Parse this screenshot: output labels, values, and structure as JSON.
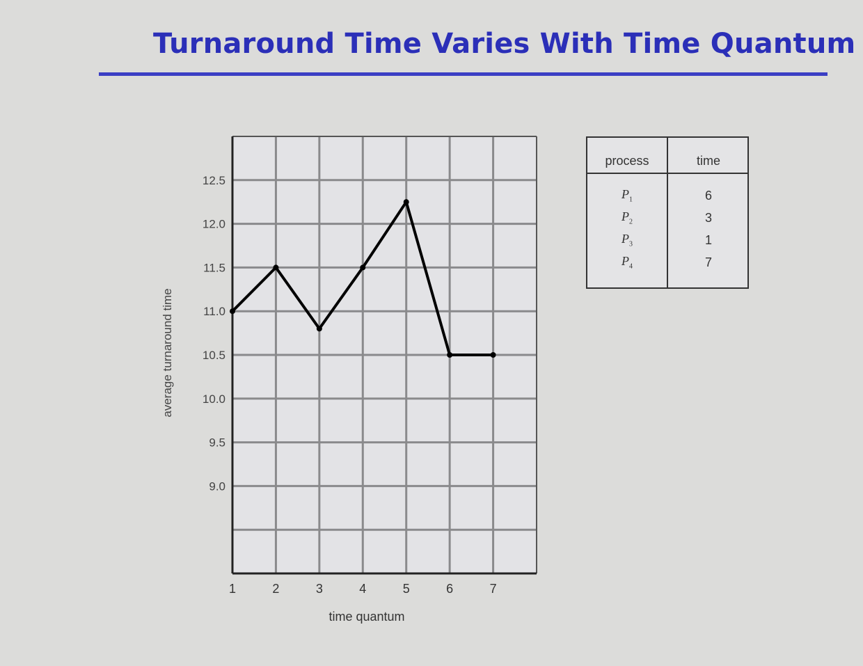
{
  "slide": {
    "title": "Turnaround Time Varies With Time Quantum",
    "title_color": "#2b2fb8"
  },
  "chart_data": {
    "type": "line",
    "title": "",
    "xlabel": "time quantum",
    "ylabel": "average turnaround time",
    "x": [
      1,
      2,
      3,
      4,
      5,
      6,
      7
    ],
    "y": [
      11.0,
      11.5,
      10.8,
      11.5,
      12.25,
      10.5,
      10.5
    ],
    "xticks": [
      "1",
      "2",
      "3",
      "4",
      "5",
      "6",
      "7"
    ],
    "yticks": [
      "12.5",
      "12.0",
      "11.5",
      "11.0",
      "10.5",
      "10.0",
      "9.5",
      "9.0"
    ],
    "xlim": [
      1,
      8
    ],
    "ylim": [
      8.0,
      13.0
    ],
    "grid": true,
    "line_color": "#000000"
  },
  "process_table": {
    "headers": [
      "process",
      "time"
    ],
    "rows": [
      {
        "process": "P",
        "sub": "1",
        "time": "6"
      },
      {
        "process": "P",
        "sub": "2",
        "time": "3"
      },
      {
        "process": "P",
        "sub": "3",
        "time": "1"
      },
      {
        "process": "P",
        "sub": "4",
        "time": "7"
      }
    ]
  }
}
